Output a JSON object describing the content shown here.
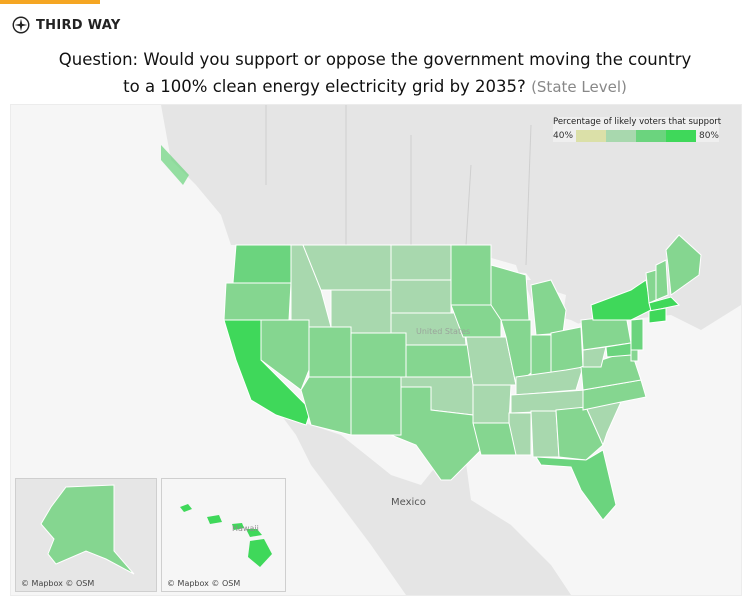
{
  "brand": {
    "name": "THIRD WAY",
    "accent_color": "#f5a623",
    "logo_icon": "compass-star-icon"
  },
  "title": {
    "line1": "Question: Would you support or oppose the government moving the country",
    "line2": "to a 100% clean energy electricity grid by 2035?",
    "subtitle": "(State Level)"
  },
  "legend": {
    "title": "Percentage of likely voters that support",
    "min_label": "40%",
    "max_label": "80%",
    "colors": [
      "#dbe0a8",
      "#a8d8ae",
      "#6bd47e",
      "#3fd85a"
    ]
  },
  "map_labels": {
    "country": "Mexico",
    "us_faint": "United States",
    "hawaii_faint": "Hawaii"
  },
  "credits": {
    "alaska": "© Mapbox © OSM",
    "hawaii": "© Mapbox © OSM"
  },
  "color_scale": {
    "light": "#a8d8ae",
    "mid": "#85d690",
    "bright": "#6bd47e",
    "top": "#3fd85a"
  },
  "states": [
    {
      "name": "Washington",
      "level": "bright"
    },
    {
      "name": "Oregon",
      "level": "mid"
    },
    {
      "name": "California",
      "level": "top"
    },
    {
      "name": "Idaho",
      "level": "light"
    },
    {
      "name": "Nevada",
      "level": "mid"
    },
    {
      "name": "Montana",
      "level": "light"
    },
    {
      "name": "Wyoming",
      "level": "light"
    },
    {
      "name": "Utah",
      "level": "mid"
    },
    {
      "name": "Arizona",
      "level": "mid"
    },
    {
      "name": "Colorado",
      "level": "mid"
    },
    {
      "name": "New Mexico",
      "level": "mid"
    },
    {
      "name": "North Dakota",
      "level": "light"
    },
    {
      "name": "South Dakota",
      "level": "light"
    },
    {
      "name": "Nebraska",
      "level": "light"
    },
    {
      "name": "Kansas",
      "level": "mid"
    },
    {
      "name": "Oklahoma",
      "level": "light"
    },
    {
      "name": "Texas",
      "level": "mid"
    },
    {
      "name": "Minnesota",
      "level": "mid"
    },
    {
      "name": "Iowa",
      "level": "mid"
    },
    {
      "name": "Missouri",
      "level": "light"
    },
    {
      "name": "Arkansas",
      "level": "light"
    },
    {
      "name": "Louisiana",
      "level": "mid"
    },
    {
      "name": "Wisconsin",
      "level": "mid"
    },
    {
      "name": "Illinois",
      "level": "mid"
    },
    {
      "name": "Michigan",
      "level": "mid"
    },
    {
      "name": "Indiana",
      "level": "mid"
    },
    {
      "name": "Ohio",
      "level": "mid"
    },
    {
      "name": "Kentucky",
      "level": "light"
    },
    {
      "name": "Tennessee",
      "level": "light"
    },
    {
      "name": "Mississippi",
      "level": "light"
    },
    {
      "name": "Alabama",
      "level": "light"
    },
    {
      "name": "Georgia",
      "level": "mid"
    },
    {
      "name": "Florida",
      "level": "bright"
    },
    {
      "name": "South Carolina",
      "level": "light"
    },
    {
      "name": "North Carolina",
      "level": "mid"
    },
    {
      "name": "Virginia",
      "level": "mid"
    },
    {
      "name": "West Virginia",
      "level": "light"
    },
    {
      "name": "Pennsylvania",
      "level": "mid"
    },
    {
      "name": "New York",
      "level": "top"
    },
    {
      "name": "Vermont",
      "level": "mid"
    },
    {
      "name": "New Hampshire",
      "level": "mid"
    },
    {
      "name": "Maine",
      "level": "mid"
    },
    {
      "name": "Massachusetts",
      "level": "top"
    },
    {
      "name": "Connecticut",
      "level": "top"
    },
    {
      "name": "New Jersey",
      "level": "bright"
    },
    {
      "name": "Maryland",
      "level": "bright"
    },
    {
      "name": "Delaware",
      "level": "mid"
    },
    {
      "name": "Alaska",
      "level": "mid"
    },
    {
      "name": "Hawaii",
      "level": "top"
    }
  ]
}
